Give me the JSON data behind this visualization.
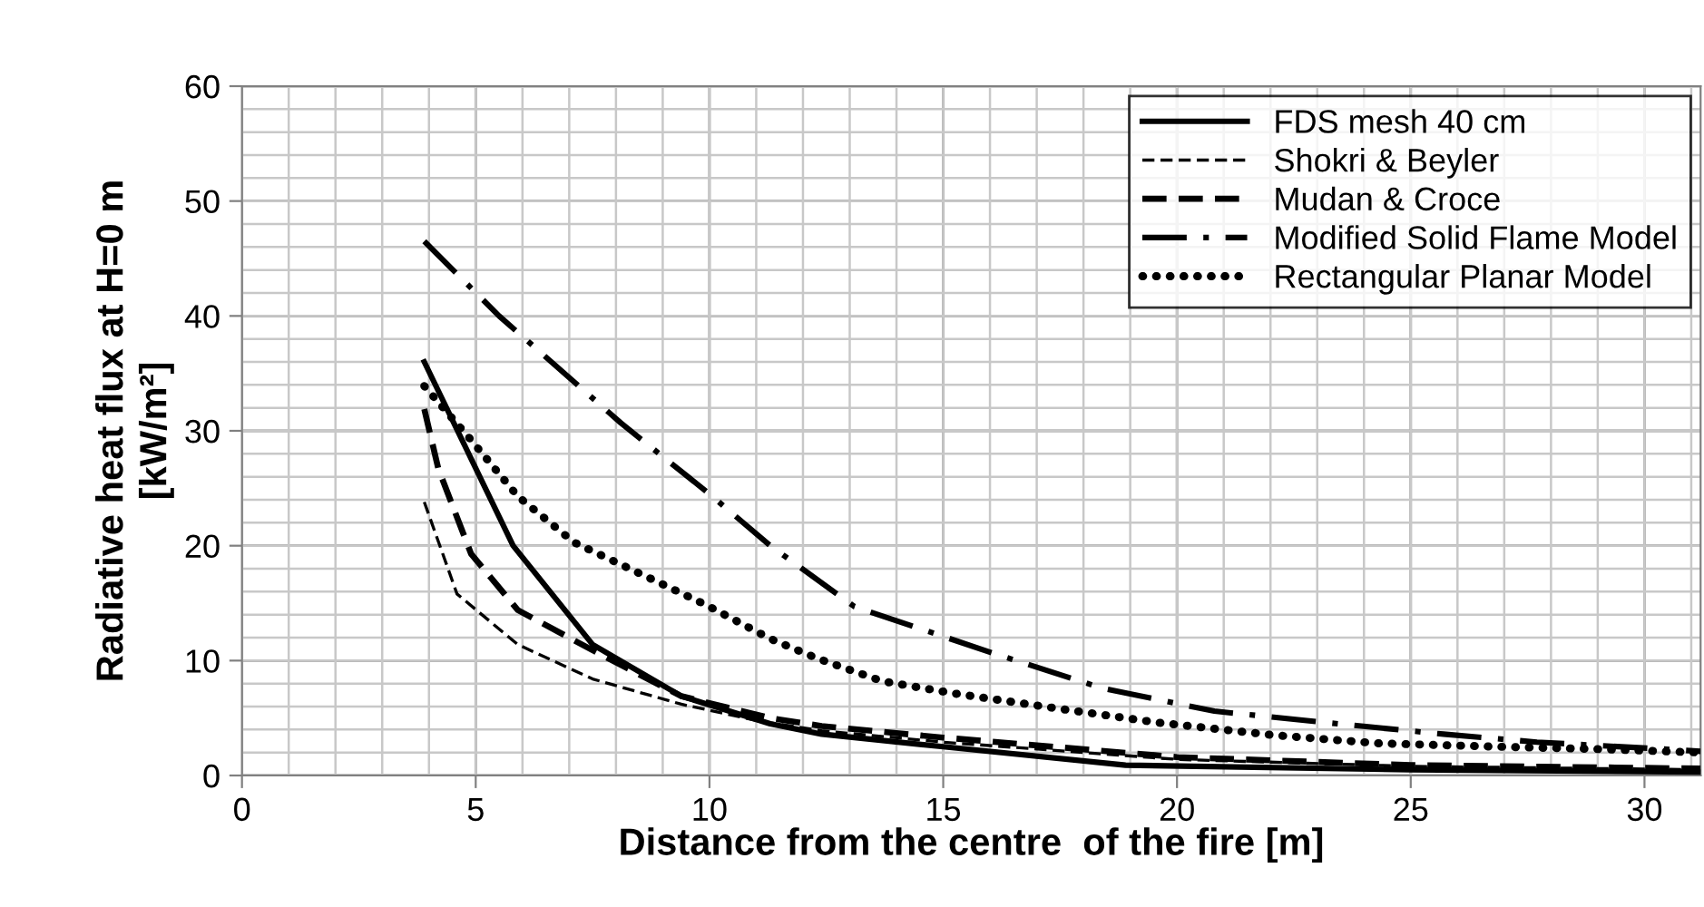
{
  "chart_data": {
    "type": "line",
    "xlabel": "Distance from the centre  of the fire [m]",
    "ylabel": "Radiative heat flux at H=0 m\n[kW/m²]",
    "xlim": [
      0,
      31.2
    ],
    "xticks": [
      0,
      5,
      10,
      15,
      20,
      25,
      30
    ],
    "ylim": [
      0,
      60
    ],
    "yticks": [
      0,
      10,
      20,
      30,
      40,
      50,
      60
    ],
    "grid": true,
    "legend": "top right",
    "series": [
      {
        "name": "FDS mesh 40 cm",
        "color": "#000000",
        "line_style": "solid",
        "x": [
          3.9,
          5.8,
          7.5,
          9.4,
          11.3,
          12.4,
          15,
          18.9,
          25,
          31.2
        ],
        "values": [
          36,
          20,
          11.4,
          6.9,
          4.5,
          3.6,
          2.5,
          0.9,
          0.5,
          0.3
        ]
      },
      {
        "name": "Shokri & Beyler",
        "color": "#000000",
        "line_style": "dashed",
        "x": [
          3.9,
          4.6,
          5.9,
          7.5,
          9.4,
          11.1,
          12.4,
          15,
          20,
          25,
          31.2
        ],
        "values": [
          23.8,
          15.8,
          11.4,
          8.4,
          6.2,
          4.7,
          3.9,
          2.9,
          1.4,
          0.8,
          0.5
        ]
      },
      {
        "name": "Mudan & Croce",
        "color": "#000000",
        "line_style": "dashed",
        "x": [
          3.9,
          4.2,
          4.9,
          5.9,
          7.5,
          9.4,
          11.3,
          12.4,
          15,
          20,
          25,
          31.2
        ],
        "values": [
          31.9,
          26.7,
          19.3,
          14.4,
          10.9,
          6.9,
          5.0,
          4.3,
          3.3,
          1.6,
          0.9,
          0.6
        ]
      },
      {
        "name": "Modified Solid Flame Model",
        "color": "#000000",
        "line_style": "dashdot",
        "x": [
          3.9,
          5.5,
          8.1,
          10,
          11.3,
          13.1,
          16.1,
          18.4,
          20.8,
          23.2,
          25.7,
          27.7,
          30.4,
          31.2
        ],
        "values": [
          46.5,
          40,
          30.7,
          24.5,
          20,
          14.7,
          10.6,
          7.6,
          5.6,
          4.6,
          3.6,
          2.9,
          2.3,
          2.1
        ]
      },
      {
        "name": "Rectangular Planar Model",
        "color": "#000000",
        "line_style": "dotted",
        "x": [
          3.9,
          4.9,
          5.9,
          7.1,
          8.5,
          9.9,
          11.3,
          12.3,
          13.7,
          15.3,
          17.5,
          19.6,
          22.1,
          24.3,
          26.9,
          29,
          31.2
        ],
        "values": [
          33.9,
          29.2,
          24.3,
          20.3,
          17.6,
          14.9,
          11.9,
          10.2,
          8.2,
          7.1,
          5.8,
          4.6,
          3.5,
          2.8,
          2.5,
          2.3,
          2.0
        ]
      }
    ]
  }
}
